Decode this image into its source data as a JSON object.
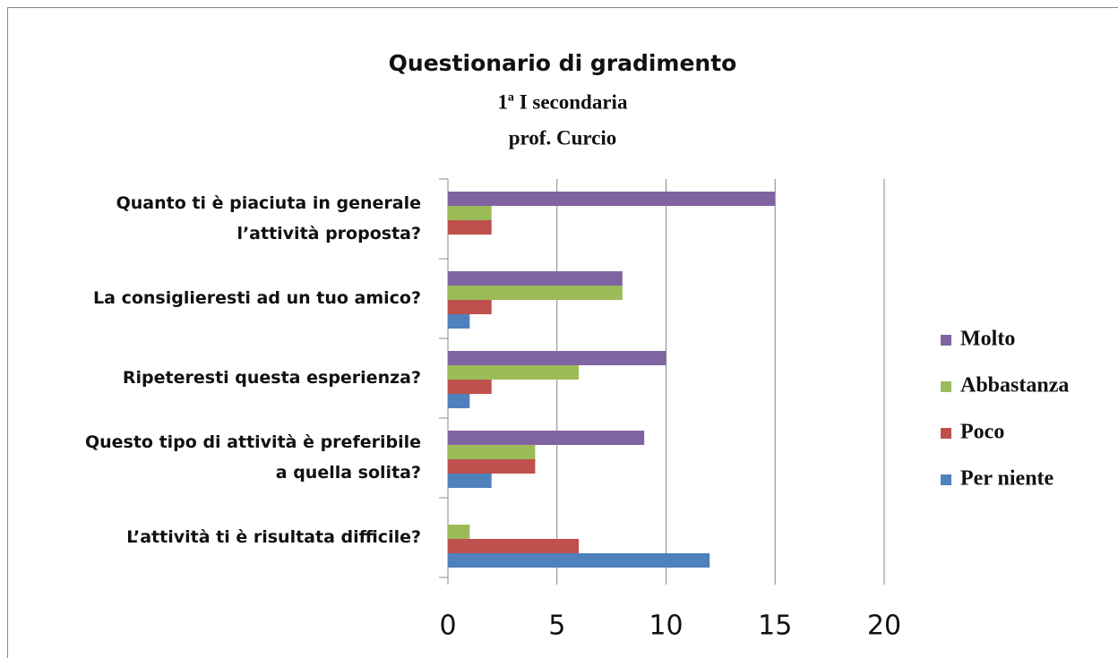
{
  "chart_data": {
    "type": "bar",
    "orientation": "horizontal",
    "title": "Questionario di gradimento",
    "subtitle": [
      "1ª I secondaria",
      "prof. Curcio"
    ],
    "categories": [
      [
        "Quanto ti è piaciuta in generale",
        "l’attività proposta?"
      ],
      [
        "La consiglieresti ad un tuo amico?"
      ],
      [
        "Ripeteresti questa esperienza?"
      ],
      [
        "Questo tipo di attività è preferibile",
        "a quella solita?"
      ],
      [
        "L’attività ti è risultata difficile?"
      ]
    ],
    "series": [
      {
        "name": "Molto",
        "color": "#8064a2",
        "values": [
          15,
          8,
          10,
          9,
          0
        ]
      },
      {
        "name": "Abbastanza",
        "color": "#9bbb59",
        "values": [
          2,
          8,
          6,
          4,
          1
        ]
      },
      {
        "name": "Poco",
        "color": "#c0504d",
        "values": [
          2,
          2,
          2,
          4,
          6
        ]
      },
      {
        "name": "Per niente",
        "color": "#4f81bd",
        "values": [
          0,
          1,
          1,
          2,
          12
        ]
      }
    ],
    "xlim": [
      0,
      20
    ],
    "xticks": [
      0,
      5,
      10,
      15,
      20
    ],
    "grid": true,
    "legend": "right"
  }
}
